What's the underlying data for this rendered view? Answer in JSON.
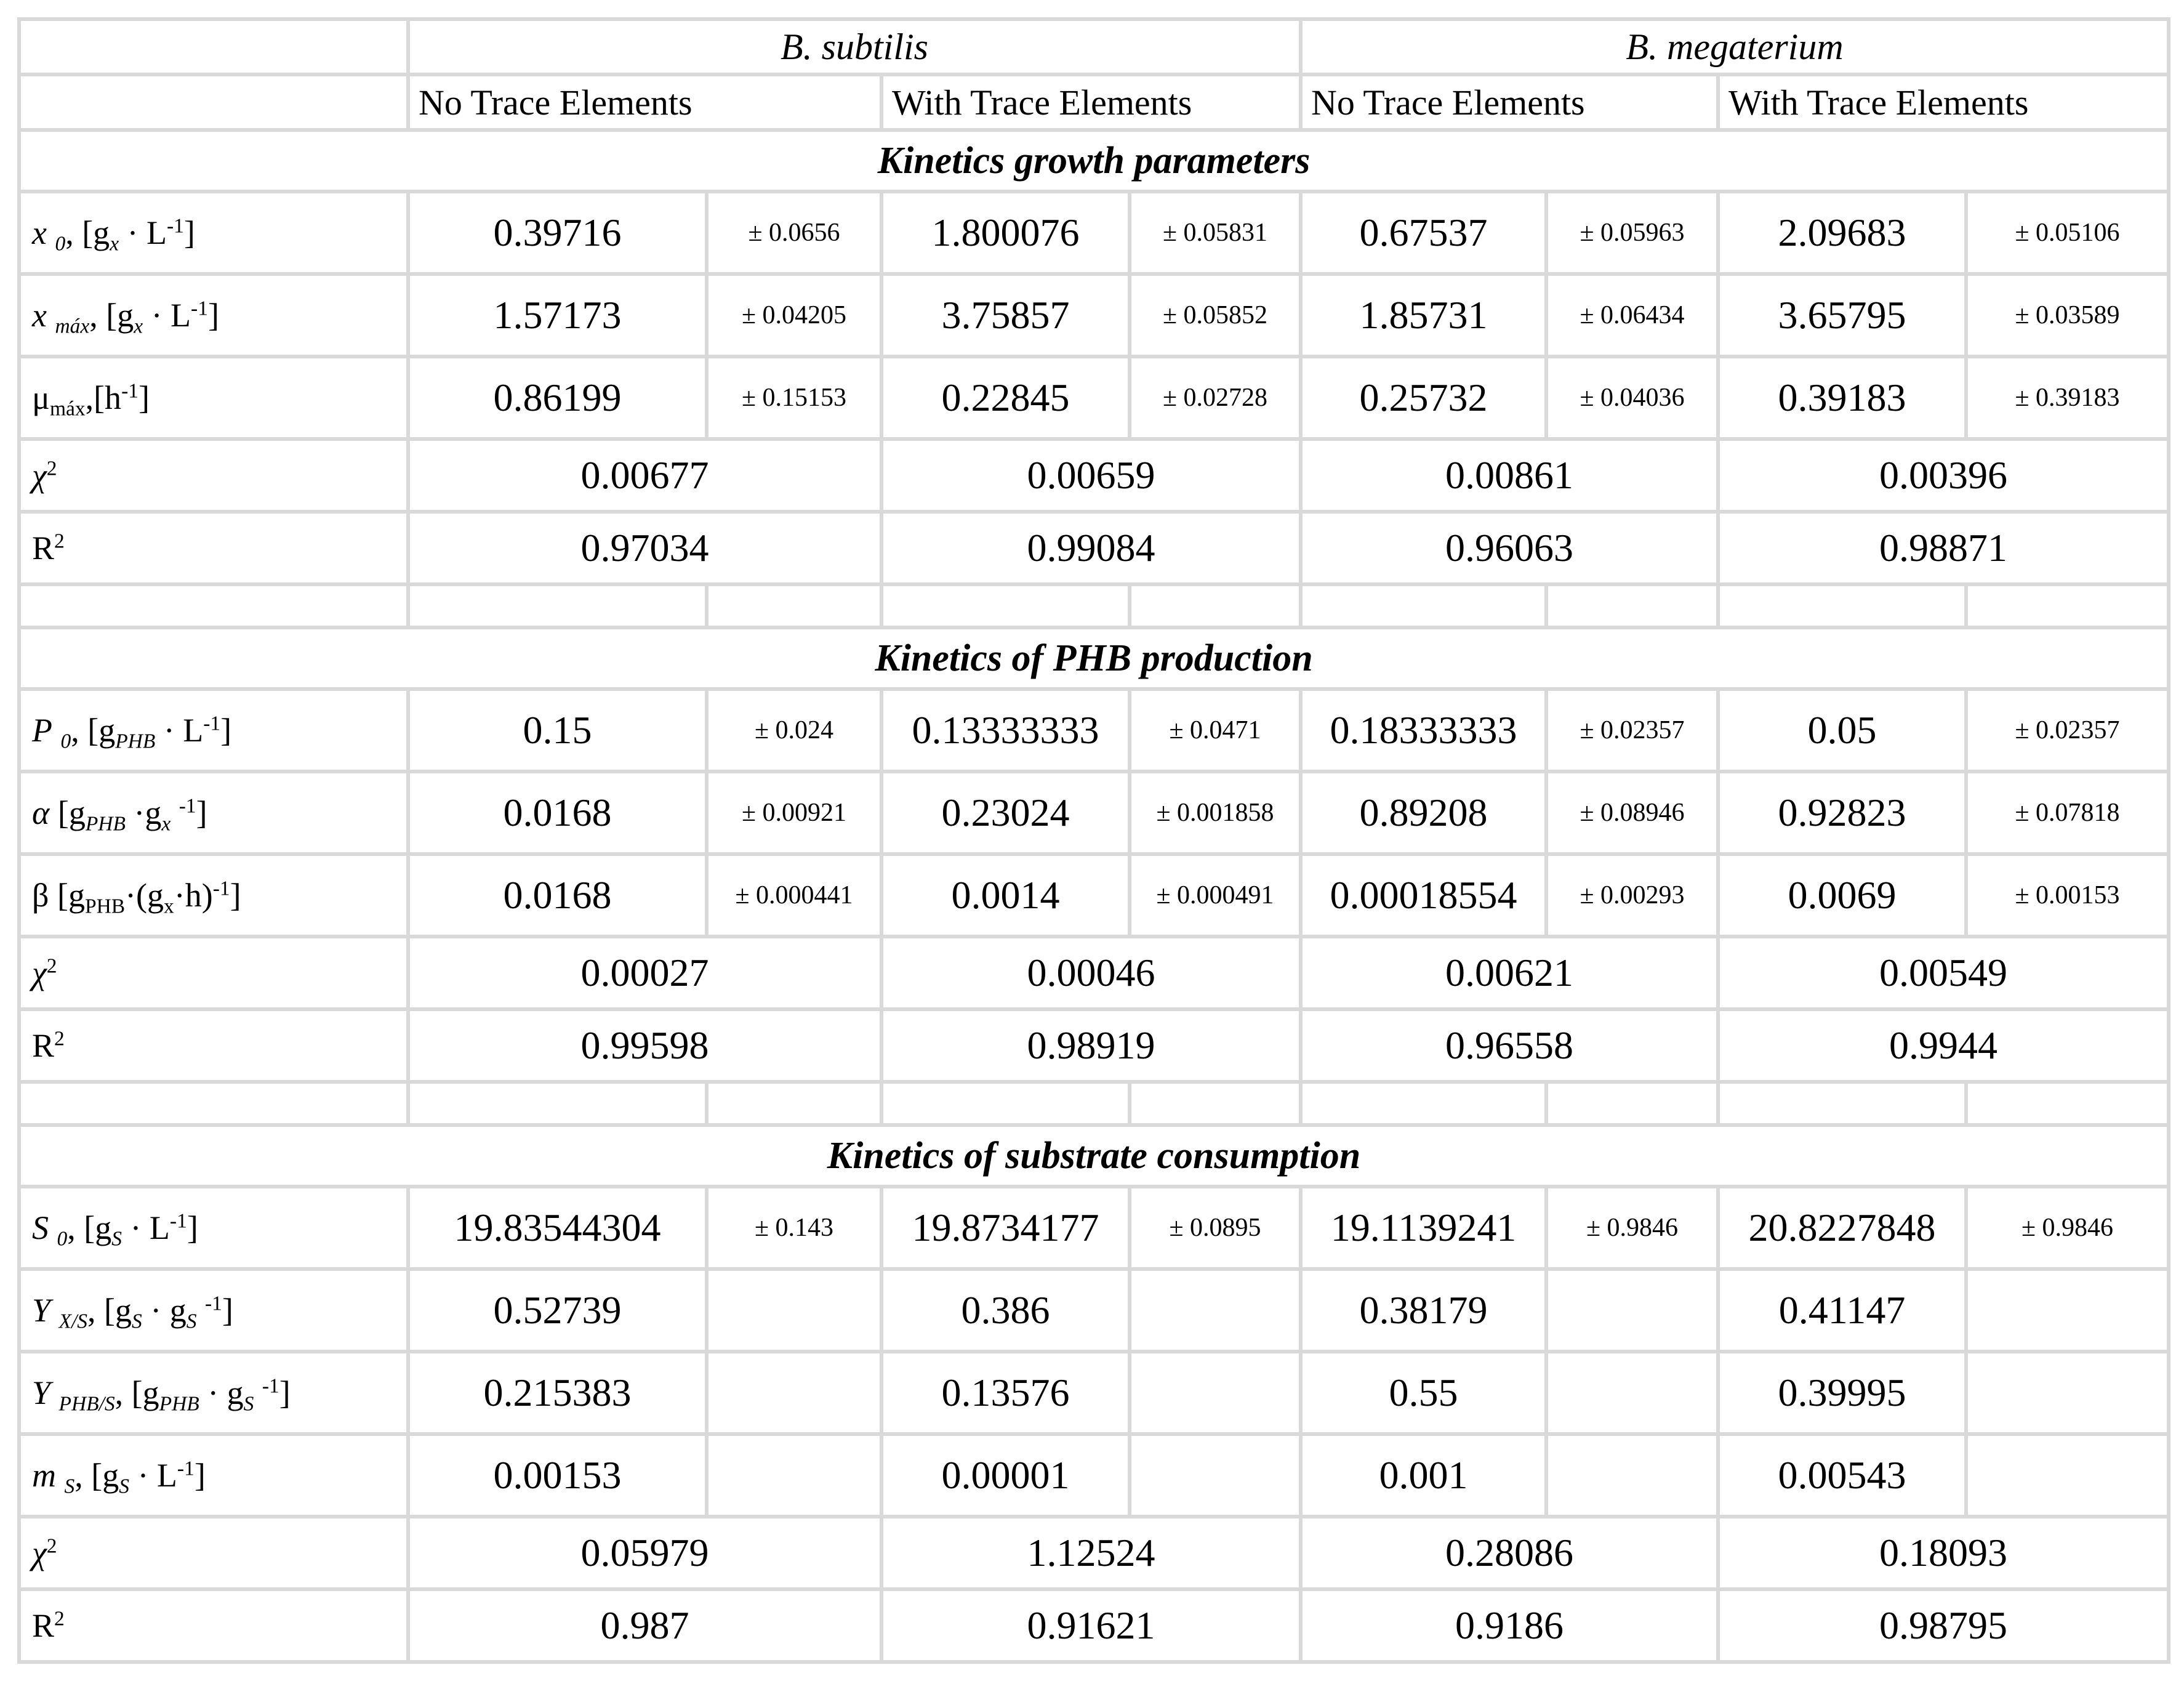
{
  "page": {
    "background_color": "#ffffff",
    "grid_color": "#d9d9d9",
    "text_color": "#000000"
  },
  "table": {
    "species": [
      "B. subtilis",
      "B. megaterium"
    ],
    "conditions": [
      "No Trace Elements",
      "With Trace Elements",
      "No Trace Elements",
      "With Trace Elements"
    ],
    "sections": [
      {
        "title": "Kinetics growth parameters",
        "rows": [
          {
            "label": "*x* _{*0*}, [g_{*x*} · L^{-1}]",
            "cells": [
              {
                "v": "0.39716",
                "e": "± 0.0656"
              },
              {
                "v": "1.800076",
                "e": "± 0.05831"
              },
              {
                "v": "0.67537",
                "e": "± 0.05963"
              },
              {
                "v": "2.09683",
                "e": "± 0.05106"
              }
            ]
          },
          {
            "label": "*x* _{*máx*}, [g_{*x*} · L^{-1}]",
            "cells": [
              {
                "v": "1.57173",
                "e": "± 0.04205"
              },
              {
                "v": "3.75857",
                "e": "± 0.05852"
              },
              {
                "v": "1.85731",
                "e": "± 0.06434"
              },
              {
                "v": "3.65795",
                "e": "± 0.03589"
              }
            ]
          },
          {
            "label": "μ_{máx},[h^{-1}]",
            "cells": [
              {
                "v": "0.86199",
                "e": "± 0.15153"
              },
              {
                "v": "0.22845",
                "e": "± 0.02728"
              },
              {
                "v": "0.25732",
                "e": "± 0.04036"
              },
              {
                "v": "0.39183",
                "e": "± 0.39183"
              }
            ]
          }
        ],
        "chi": {
          "label": "*χ*^{2}",
          "values": [
            "0.00677",
            "0.00659",
            "0.00861",
            "0.00396"
          ]
        },
        "r2": {
          "label": "R^{2}",
          "values": [
            "0.97034",
            "0.99084",
            "0.96063",
            "0.98871"
          ]
        }
      },
      {
        "title": "Kinetics of PHB production",
        "rows": [
          {
            "label": "*P* _{*0*}, [g_{*PHB*} · L^{-1}]",
            "cells": [
              {
                "v": "0.15",
                "e": "± 0.024"
              },
              {
                "v": "0.13333333",
                "e": "± 0.0471"
              },
              {
                "v": "0.18333333",
                "e": "± 0.02357"
              },
              {
                "v": "0.05",
                "e": "± 0.02357"
              }
            ]
          },
          {
            "label": "*α* [g_{*PHB*} ·g_{*x*} ^{-1}]",
            "cells": [
              {
                "v": "0.0168",
                "e": "± 0.00921"
              },
              {
                "v": "0.23024",
                "e": "± 0.001858"
              },
              {
                "v": "0.89208",
                "e": "± 0.08946"
              },
              {
                "v": "0.92823",
                "e": "± 0.07818"
              }
            ]
          },
          {
            "label": "β [g_{PHB}·(g_{x}·h)^{-1}]",
            "cells": [
              {
                "v": "0.0168",
                "e": "± 0.000441"
              },
              {
                "v": "0.0014",
                "e": "± 0.000491"
              },
              {
                "v": "0.00018554",
                "e": "± 0.00293"
              },
              {
                "v": "0.0069",
                "e": "± 0.00153"
              }
            ]
          }
        ],
        "chi": {
          "label": "*χ*^{2}",
          "values": [
            "0.00027",
            "0.00046",
            "0.00621",
            "0.00549"
          ]
        },
        "r2": {
          "label": "R^{2}",
          "values": [
            "0.99598",
            "0.98919",
            "0.96558",
            "0.9944"
          ]
        }
      },
      {
        "title": "Kinetics of substrate consumption",
        "rows": [
          {
            "label": "*S* _{*0*}, [g_{*S*} · L^{-1}]",
            "cells": [
              {
                "v": "19.83544304",
                "e": "± 0.143"
              },
              {
                "v": "19.8734177",
                "e": "± 0.0895"
              },
              {
                "v": "19.1139241",
                "e": "± 0.9846"
              },
              {
                "v": "20.8227848",
                "e": "± 0.9846"
              }
            ]
          },
          {
            "label": "*Y* _{*X/S*}, [g_{*S*} · g_{*S*} ^{-1}]",
            "cells": [
              {
                "v": "0.52739",
                "e": ""
              },
              {
                "v": "0.386",
                "e": ""
              },
              {
                "v": "0.38179",
                "e": ""
              },
              {
                "v": "0.41147",
                "e": ""
              }
            ]
          },
          {
            "label": "*Y* _{*PHB/S*}, [g_{*PHB*} · g_{*S*} ^{-1}]",
            "cells": [
              {
                "v": "0.215383",
                "e": ""
              },
              {
                "v": "0.13576",
                "e": ""
              },
              {
                "v": "0.55",
                "e": ""
              },
              {
                "v": "0.39995",
                "e": ""
              }
            ]
          },
          {
            "label": "*m* _{*S*}, [g_{*S*} · L^{-1}]",
            "cells": [
              {
                "v": "0.00153",
                "e": ""
              },
              {
                "v": "0.00001",
                "e": ""
              },
              {
                "v": "0.001",
                "e": ""
              },
              {
                "v": "0.00543",
                "e": ""
              }
            ]
          }
        ],
        "chi": {
          "label": "*χ*^{2}",
          "values": [
            "0.05979",
            "1.12524",
            "0.28086",
            "0.18093"
          ]
        },
        "r2": {
          "label": "R^{2}",
          "values": [
            "0.987",
            "0.91621",
            "0.9186",
            "0.98795"
          ]
        }
      }
    ]
  }
}
